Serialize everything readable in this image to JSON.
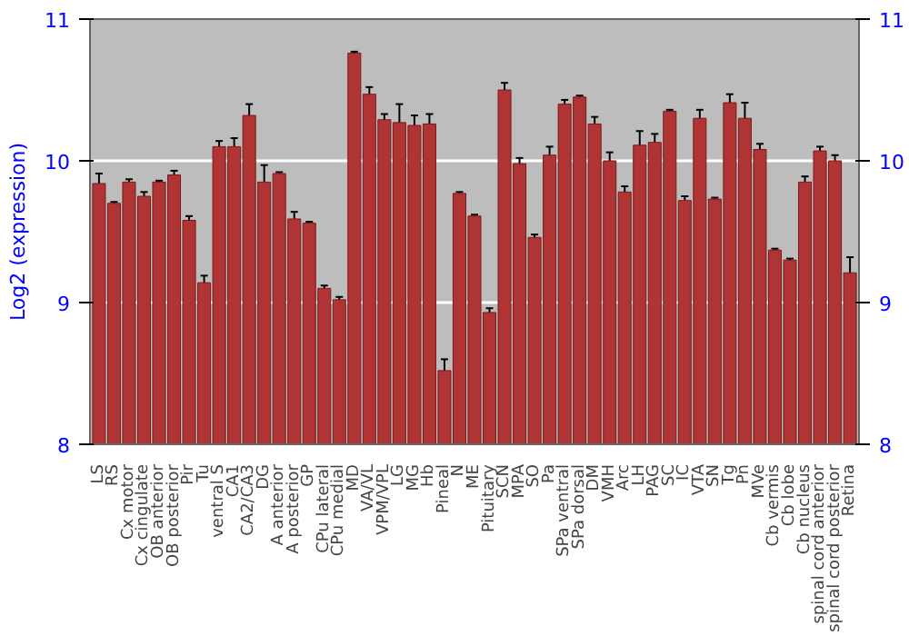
{
  "chart_data": {
    "type": "bar",
    "ylabel": "Log2 (expression)",
    "categories": [
      "LS",
      "RS",
      "Cx motor",
      "Cx cingulate",
      "OB anterior",
      "OB posterior",
      "Pir",
      "Tu",
      "ventral S",
      "CA1",
      "CA2/CA3",
      "DG",
      "A anterior",
      "A posterior",
      "GP",
      "CPu lateral",
      "CPu medial",
      "MD",
      "VA/VL",
      "VPM/VPL",
      "LG",
      "MG",
      "Hb",
      "Pineal",
      "N",
      "ME",
      "Pituitary",
      "SCN",
      "MPA",
      "SO",
      "Pa",
      "SPa ventral",
      "SPa dorsal",
      "DM",
      "VMH",
      "Arc",
      "LH",
      "PAG",
      "SC",
      "IC",
      "VTA",
      "SN",
      "Tg",
      "Pn",
      "MVe",
      "Cb vermis",
      "Cb lobe",
      "Cb nucleus",
      "spinal cord anterior",
      "spinal cord posterior",
      "Retina"
    ],
    "values": [
      9.84,
      9.7,
      9.85,
      9.75,
      9.85,
      9.9,
      9.58,
      9.14,
      10.1,
      10.1,
      10.32,
      9.85,
      9.91,
      9.59,
      9.56,
      9.1,
      9.02,
      10.76,
      10.47,
      10.29,
      10.27,
      10.25,
      10.26,
      8.52,
      9.77,
      9.61,
      8.93,
      10.5,
      9.98,
      9.46,
      10.04,
      10.4,
      10.45,
      10.26,
      10.0,
      9.78,
      10.11,
      10.13,
      10.35,
      9.72,
      10.3,
      9.73,
      10.41,
      10.3,
      10.08,
      9.37,
      9.3,
      9.85,
      10.07,
      10.0,
      9.21
    ],
    "errors": [
      0.07,
      0.01,
      0.02,
      0.03,
      0.01,
      0.03,
      0.03,
      0.05,
      0.04,
      0.06,
      0.08,
      0.12,
      0.01,
      0.05,
      0.01,
      0.02,
      0.02,
      0.01,
      0.05,
      0.04,
      0.13,
      0.07,
      0.07,
      0.08,
      0.01,
      0.01,
      0.03,
      0.05,
      0.04,
      0.02,
      0.06,
      0.03,
      0.01,
      0.05,
      0.06,
      0.04,
      0.1,
      0.06,
      0.01,
      0.03,
      0.06,
      0.01,
      0.06,
      0.11,
      0.04,
      0.01,
      0.01,
      0.04,
      0.03,
      0.04,
      0.11
    ],
    "color": "#b03434",
    "ylim": [
      8,
      11
    ],
    "yticks": [
      8,
      9,
      10,
      11
    ],
    "y2lim": [
      8,
      11
    ],
    "y2ticks": [
      8,
      9,
      10,
      11
    ],
    "grid": "y"
  }
}
